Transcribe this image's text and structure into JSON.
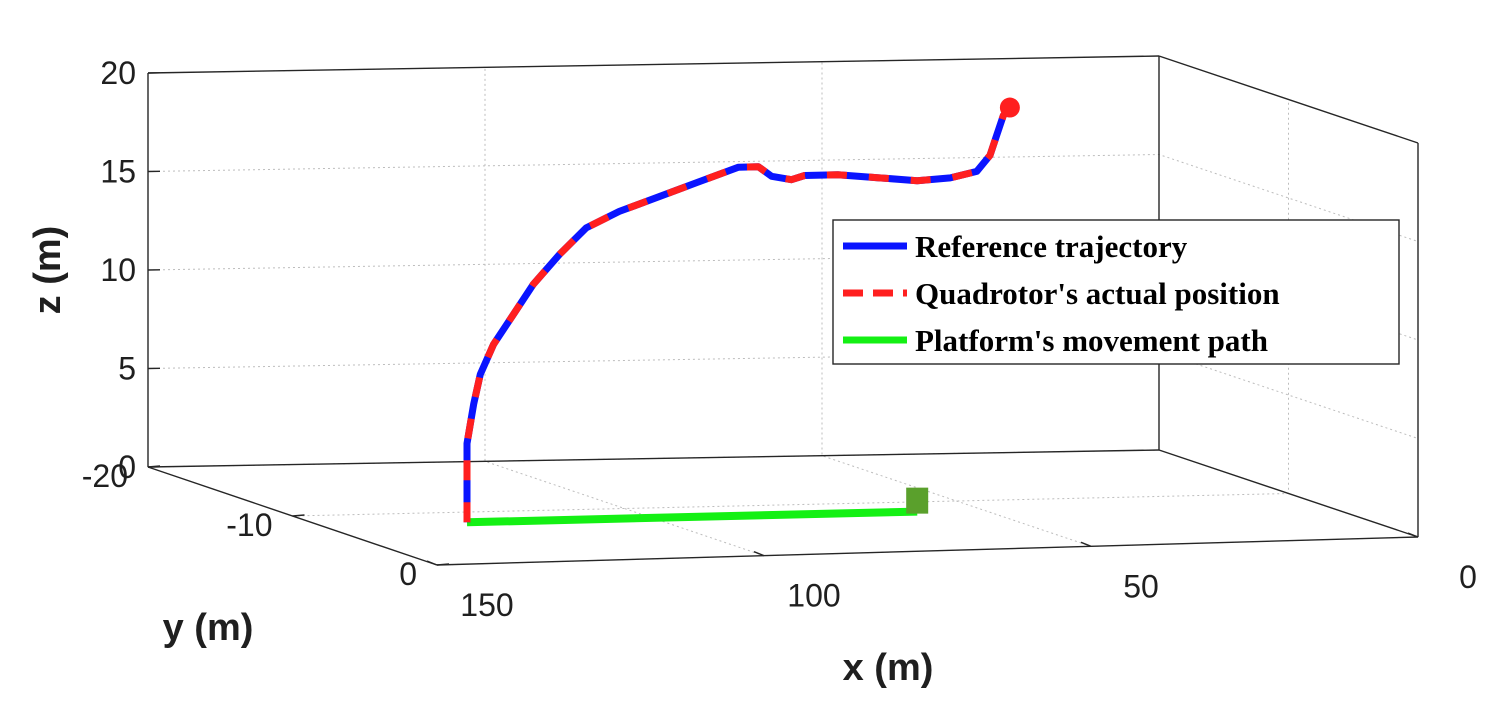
{
  "chart_data": {
    "type": "line3d",
    "title": "",
    "xlabel": "x (m)",
    "ylabel": "y (m)",
    "zlabel": "z (m)",
    "xlim": [
      0,
      150
    ],
    "ylim": [
      -20,
      0
    ],
    "zlim": [
      0,
      20
    ],
    "x_ticks": [
      "150",
      "100",
      "50",
      "0"
    ],
    "y_ticks": [
      "-20",
      "-10",
      "0"
    ],
    "z_ticks": [
      "0",
      "5",
      "10",
      "15",
      "20"
    ],
    "grid": true,
    "legend_position": "right",
    "series": [
      {
        "name": "Reference trajectory",
        "color": "#0a14ff",
        "style": "solid",
        "x": [
          128,
          128,
          128,
          127,
          126,
          124,
          121,
          118,
          114,
          110,
          105,
          99,
          93,
          87,
          84,
          82,
          79,
          77,
          72,
          66,
          60,
          55,
          51,
          49,
          48,
          47,
          46
        ],
        "y": [
          -8,
          -8,
          -8,
          -8,
          -8,
          -8,
          -8,
          -8,
          -8,
          -8,
          -8,
          -8,
          -8,
          -8,
          -8,
          -8,
          -8,
          -8,
          -8,
          -8,
          -8,
          -8,
          -8,
          -8,
          -8,
          -8,
          -8
        ],
        "z": [
          0,
          2,
          4,
          6,
          7.5,
          9,
          10.5,
          12,
          13.5,
          14.8,
          15.6,
          16.3,
          17,
          17.7,
          17.7,
          17.2,
          17,
          17.2,
          17.2,
          17,
          16.8,
          16.9,
          17.2,
          18,
          19,
          20,
          20.4
        ]
      },
      {
        "name": "Quadrotor's actual position",
        "color": "#ff1f1f",
        "style": "dashed",
        "x": [
          128,
          128,
          128,
          127,
          126,
          124,
          121,
          118,
          114,
          110,
          105,
          99,
          93,
          87,
          84,
          82,
          79,
          77,
          72,
          66,
          60,
          55,
          51,
          49,
          48,
          47,
          46
        ],
        "y": [
          -8,
          -8,
          -8,
          -8,
          -8,
          -8,
          -8,
          -8,
          -8,
          -8,
          -8,
          -8,
          -8,
          -8,
          -8,
          -8,
          -8,
          -8,
          -8,
          -8,
          -8,
          -8,
          -8,
          -8,
          -8,
          -8,
          -8
        ],
        "z": [
          0,
          2,
          4,
          6,
          7.5,
          9,
          10.5,
          12,
          13.5,
          14.8,
          15.6,
          16.3,
          17,
          17.7,
          17.7,
          17.2,
          17,
          17.2,
          17.2,
          17,
          16.8,
          16.9,
          17.2,
          18,
          19,
          20,
          20.4
        ]
      },
      {
        "name": "Platform's movement path",
        "color": "#14f014",
        "style": "solid",
        "x": [
          128,
          60
        ],
        "y": [
          -8,
          -8
        ],
        "z": [
          0,
          0
        ]
      }
    ],
    "markers": [
      {
        "label": "start",
        "shape": "square",
        "color": "#5aa02c",
        "x": 60,
        "y": -8,
        "z": 0
      },
      {
        "label": "end",
        "shape": "circle",
        "color": "#ff1f1f",
        "x": 46,
        "y": -8,
        "z": 20.4
      }
    ]
  }
}
